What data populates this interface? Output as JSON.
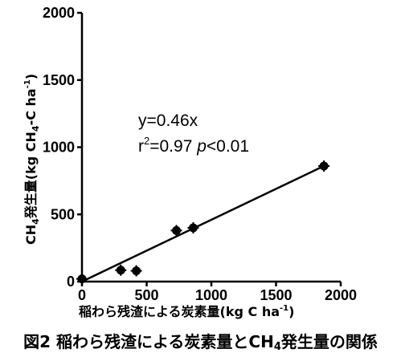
{
  "chart_data": {
    "type": "scatter",
    "x": [
      0,
      300,
      420,
      730,
      860,
      1870
    ],
    "y": [
      20,
      85,
      80,
      380,
      400,
      860
    ],
    "xlim": [
      0,
      2000
    ],
    "ylim": [
      0,
      2000
    ],
    "x_ticks": [
      "0",
      "500",
      "1000",
      "1500",
      "2000"
    ],
    "y_ticks": [
      "0",
      "500",
      "1000",
      "1500",
      "2000"
    ],
    "xlabel": "稲わら残渣による炭素量(kg C ha-1)",
    "ylabel": "CH4発生量(kg CH4-C ha-1)",
    "fit": {
      "equation": "y=0.46x",
      "slope": 0.46,
      "r2_label": "r2=0.97",
      "p_label": "p<0.01"
    }
  },
  "labels": {
    "xlabel_main": "稲わら残渣による炭素量",
    "xlabel_unit_prefix": "(kg C ha",
    "xlabel_unit_sup": "-1",
    "xlabel_unit_suffix": ")",
    "ylabel_part1": "CH",
    "ylabel_sub1": "4",
    "ylabel_part2": "発生量(kg CH",
    "ylabel_sub2": "4",
    "ylabel_part3": "-C ha",
    "ylabel_sup": "-1",
    "ylabel_part4": ")",
    "eq_line1": "y=0.46x",
    "eq_r": "r",
    "eq_r_sup": "2",
    "eq_r_val": "=0.97 ",
    "eq_p": "p",
    "eq_p_val": "<0.01"
  },
  "caption": {
    "fig_no": "図2",
    "text_part1": "稲わら残渣による炭素量とCH",
    "text_sub": "4",
    "text_part2": "発生量の関係"
  }
}
